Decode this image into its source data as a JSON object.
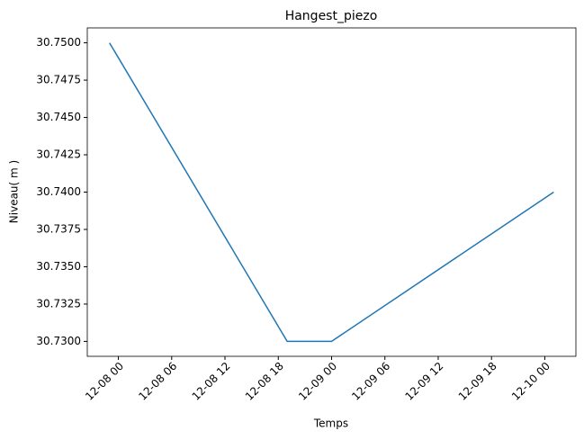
{
  "chart_data": {
    "type": "line",
    "title": "Hangest_piezo",
    "x_label": "Temps",
    "y_label": "Niveau( m )",
    "x": [
      "12-07 23",
      "12-08 19",
      "12-09 00",
      "12-10 01"
    ],
    "series": [
      {
        "name": "Hangest_piezo",
        "color": "#1f77b4",
        "values": [
          30.75,
          30.73,
          30.73,
          30.74
        ]
      }
    ],
    "xlim": [
      "12-07 20:30",
      "12-10 03:30"
    ],
    "xticks": [
      "12-08 00",
      "12-08 06",
      "12-08 12",
      "12-08 18",
      "12-09 00",
      "12-09 06",
      "12-09 12",
      "12-09 18",
      "12-10 00"
    ],
    "ylim": [
      30.729,
      30.751
    ],
    "yticks": [
      {
        "value": 30.73,
        "label": "30.7300"
      },
      {
        "value": 30.7325,
        "label": "30.7325"
      },
      {
        "value": 30.735,
        "label": "30.7350"
      },
      {
        "value": 30.7375,
        "label": "30.7375"
      },
      {
        "value": 30.74,
        "label": "30.7400"
      },
      {
        "value": 30.7425,
        "label": "30.7425"
      },
      {
        "value": 30.745,
        "label": "30.7450"
      },
      {
        "value": 30.7475,
        "label": "30.7475"
      },
      {
        "value": 30.75,
        "label": "30.7500"
      }
    ],
    "grid": false
  }
}
